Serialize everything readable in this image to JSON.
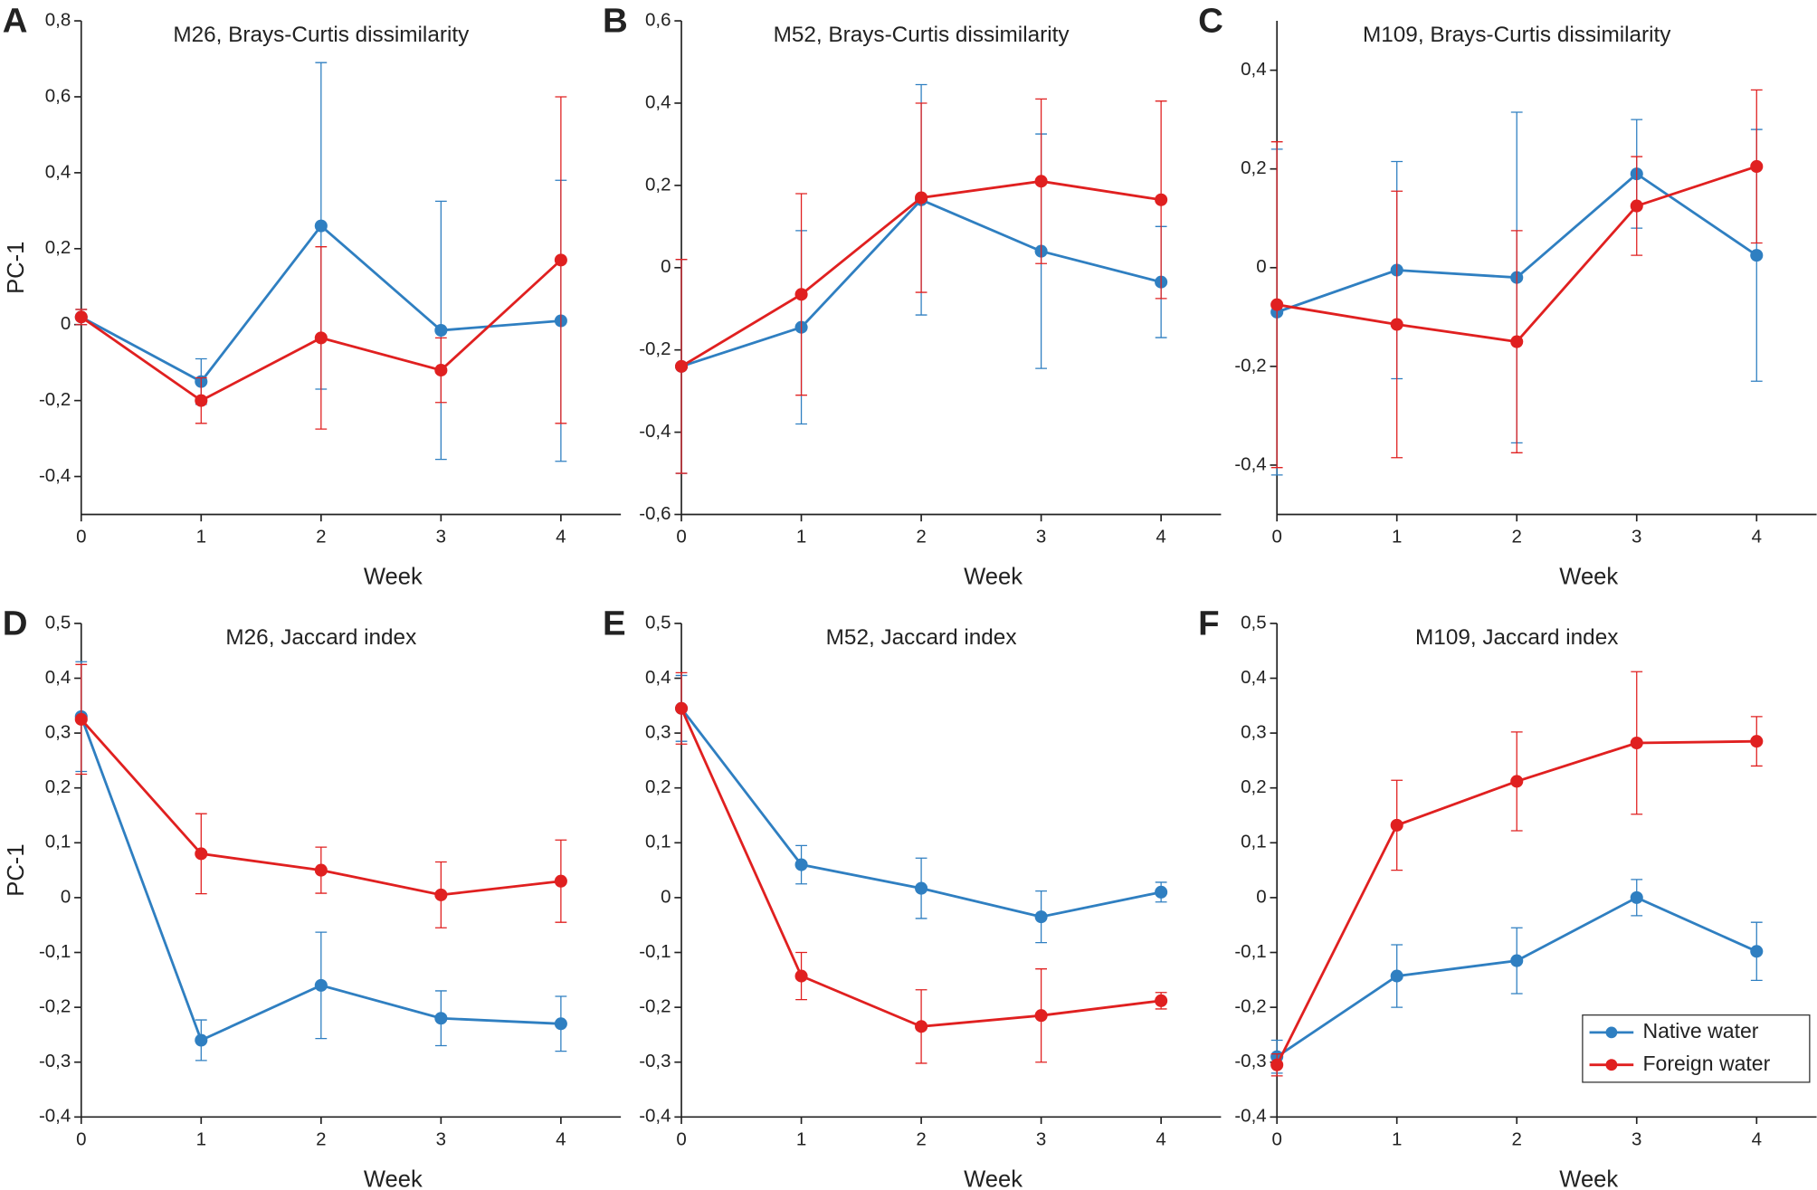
{
  "chart_data": [
    {
      "type": "line",
      "panel": "A",
      "title": "M26, Brays-Curtis dissimilarity",
      "x_label": "Week",
      "y_label": "PC-1",
      "x": [
        0,
        1,
        2,
        3,
        4
      ],
      "xlim": [
        0,
        4.5
      ],
      "xticks": [
        0,
        1,
        2,
        3,
        4
      ],
      "ylim": [
        -0.5,
        0.8
      ],
      "yticks": [
        {
          "value": -0.4,
          "label": "-0,4"
        },
        {
          "value": -0.2,
          "label": "-0,2"
        },
        0,
        {
          "value": 0.2,
          "label": "0,2"
        },
        {
          "value": 0.4,
          "label": "0,4"
        },
        {
          "value": 0.6,
          "label": "0,6"
        },
        {
          "value": 0.8,
          "label": "0,8"
        }
      ],
      "series": [
        {
          "color": "#2f7fc1",
          "values": [
            0.02,
            -0.15,
            0.26,
            -0.015,
            0.01
          ],
          "errors": [
            0.02,
            0.06,
            0.43,
            0.34,
            0.37
          ]
        },
        {
          "color": "#e02020",
          "values": [
            0.02,
            -0.2,
            -0.035,
            -0.12,
            0.17
          ],
          "errors": [
            0.02,
            0.06,
            0.24,
            0.085,
            0.43
          ]
        }
      ]
    },
    {
      "type": "line",
      "panel": "B",
      "title": "M52, Brays-Curtis dissimilarity",
      "x_label": "Week",
      "x": [
        0,
        1,
        2,
        3,
        4
      ],
      "xlim": [
        0,
        4.5
      ],
      "xticks": [
        0,
        1,
        2,
        3,
        4
      ],
      "ylim": [
        -0.6,
        0.6
      ],
      "yticks": [
        {
          "value": -0.6,
          "label": "-0,6"
        },
        {
          "value": -0.4,
          "label": "-0,4"
        },
        {
          "value": -0.2,
          "label": "-0,2"
        },
        0,
        {
          "value": 0.2,
          "label": "0,2"
        },
        {
          "value": 0.4,
          "label": "0,4"
        },
        {
          "value": 0.6,
          "label": "0,6"
        }
      ],
      "series": [
        {
          "color": "#2f7fc1",
          "values": [
            -0.24,
            -0.145,
            0.165,
            0.04,
            -0.035
          ],
          "errors": [
            0.26,
            0.235,
            0.28,
            0.285,
            0.135
          ]
        },
        {
          "color": "#e02020",
          "values": [
            -0.24,
            -0.065,
            0.17,
            0.21,
            0.165
          ],
          "errors": [
            0.26,
            0.245,
            0.23,
            0.2,
            0.24
          ]
        }
      ]
    },
    {
      "type": "line",
      "panel": "C",
      "title": "M109, Brays-Curtis dissimilarity",
      "x_label": "Week",
      "x": [
        0,
        1,
        2,
        3,
        4
      ],
      "xlim": [
        0,
        4.5
      ],
      "xticks": [
        0,
        1,
        2,
        3,
        4
      ],
      "ylim": [
        -0.5,
        0.5
      ],
      "yticks": [
        {
          "value": -0.4,
          "label": "-0,4"
        },
        {
          "value": -0.2,
          "label": "-0,2"
        },
        0,
        {
          "value": 0.2,
          "label": "0,2"
        },
        {
          "value": 0.4,
          "label": "0,4"
        }
      ],
      "series": [
        {
          "color": "#2f7fc1",
          "values": [
            -0.09,
            -0.005,
            -0.02,
            0.19,
            0.025
          ],
          "errors": [
            0.33,
            0.22,
            0.335,
            0.11,
            0.255
          ]
        },
        {
          "color": "#e02020",
          "values": [
            -0.075,
            -0.115,
            -0.15,
            0.125,
            0.205
          ],
          "errors": [
            0.33,
            0.27,
            0.225,
            0.1,
            0.155
          ]
        }
      ]
    },
    {
      "type": "line",
      "panel": "D",
      "title": "M26, Jaccard index",
      "x_label": "Week",
      "y_label": "PC-1",
      "x": [
        0,
        1,
        2,
        3,
        4
      ],
      "xlim": [
        0,
        4.5
      ],
      "xticks": [
        0,
        1,
        2,
        3,
        4
      ],
      "ylim": [
        -0.4,
        0.5
      ],
      "yticks": [
        {
          "value": -0.4,
          "label": "-0,4"
        },
        {
          "value": -0.3,
          "label": "-0,3"
        },
        {
          "value": -0.2,
          "label": "-0,2"
        },
        {
          "value": -0.1,
          "label": "-0,1"
        },
        0,
        {
          "value": 0.1,
          "label": "0,1"
        },
        {
          "value": 0.2,
          "label": "0,2"
        },
        {
          "value": 0.3,
          "label": "0,3"
        },
        {
          "value": 0.4,
          "label": "0,4"
        },
        {
          "value": 0.5,
          "label": "0,5"
        }
      ],
      "series": [
        {
          "color": "#2f7fc1",
          "values": [
            0.33,
            -0.26,
            -0.16,
            -0.22,
            -0.23
          ],
          "errors": [
            0.1,
            0.037,
            0.097,
            0.05,
            0.05
          ]
        },
        {
          "color": "#e02020",
          "values": [
            0.325,
            0.08,
            0.05,
            0.005,
            0.03
          ],
          "errors": [
            0.1,
            0.073,
            0.042,
            0.06,
            0.075
          ]
        }
      ]
    },
    {
      "type": "line",
      "panel": "E",
      "title": "M52, Jaccard index",
      "x_label": "Week",
      "x": [
        0,
        1,
        2,
        3,
        4
      ],
      "xlim": [
        0,
        4.5
      ],
      "xticks": [
        0,
        1,
        2,
        3,
        4
      ],
      "ylim": [
        -0.4,
        0.5
      ],
      "yticks": [
        {
          "value": -0.4,
          "label": "-0,4"
        },
        {
          "value": -0.3,
          "label": "-0,3"
        },
        {
          "value": -0.2,
          "label": "-0,2"
        },
        {
          "value": -0.1,
          "label": "-0,1"
        },
        0,
        {
          "value": 0.1,
          "label": "0,1"
        },
        {
          "value": 0.2,
          "label": "0,2"
        },
        {
          "value": 0.3,
          "label": "0,3"
        },
        {
          "value": 0.4,
          "label": "0,4"
        },
        {
          "value": 0.5,
          "label": "0,5"
        }
      ],
      "series": [
        {
          "color": "#2f7fc1",
          "values": [
            0.345,
            0.06,
            0.017,
            -0.035,
            0.01
          ],
          "errors": [
            0.06,
            0.035,
            0.055,
            0.047,
            0.018
          ]
        },
        {
          "color": "#e02020",
          "values": [
            0.345,
            -0.143,
            -0.235,
            -0.215,
            -0.188
          ],
          "errors": [
            0.065,
            0.043,
            0.067,
            0.085,
            0.015
          ]
        }
      ]
    },
    {
      "type": "line",
      "panel": "F",
      "title": "M109, Jaccard index",
      "x_label": "Week",
      "legend": "lower right",
      "x": [
        0,
        1,
        2,
        3,
        4
      ],
      "xlim": [
        0,
        4.5
      ],
      "xticks": [
        0,
        1,
        2,
        3,
        4
      ],
      "ylim": [
        -0.4,
        0.5
      ],
      "yticks": [
        {
          "value": -0.4,
          "label": "-0,4"
        },
        {
          "value": -0.3,
          "label": "-0,3"
        },
        {
          "value": -0.2,
          "label": "-0,2"
        },
        {
          "value": -0.1,
          "label": "-0,1"
        },
        0,
        {
          "value": 0.1,
          "label": "0,1"
        },
        {
          "value": 0.2,
          "label": "0,2"
        },
        {
          "value": 0.3,
          "label": "0,3"
        },
        {
          "value": 0.4,
          "label": "0,4"
        },
        {
          "value": 0.5,
          "label": "0,5"
        }
      ],
      "series": [
        {
          "name": "Native water",
          "color": "#2f7fc1",
          "values": [
            -0.29,
            -0.143,
            -0.115,
            0.0,
            -0.098
          ],
          "errors": [
            0.03,
            0.057,
            0.06,
            0.033,
            0.053
          ]
        },
        {
          "name": "Foreign water",
          "color": "#e02020",
          "values": [
            -0.305,
            0.132,
            0.212,
            0.282,
            0.285
          ],
          "errors": [
            0.02,
            0.082,
            0.09,
            0.13,
            0.045
          ]
        }
      ]
    }
  ]
}
